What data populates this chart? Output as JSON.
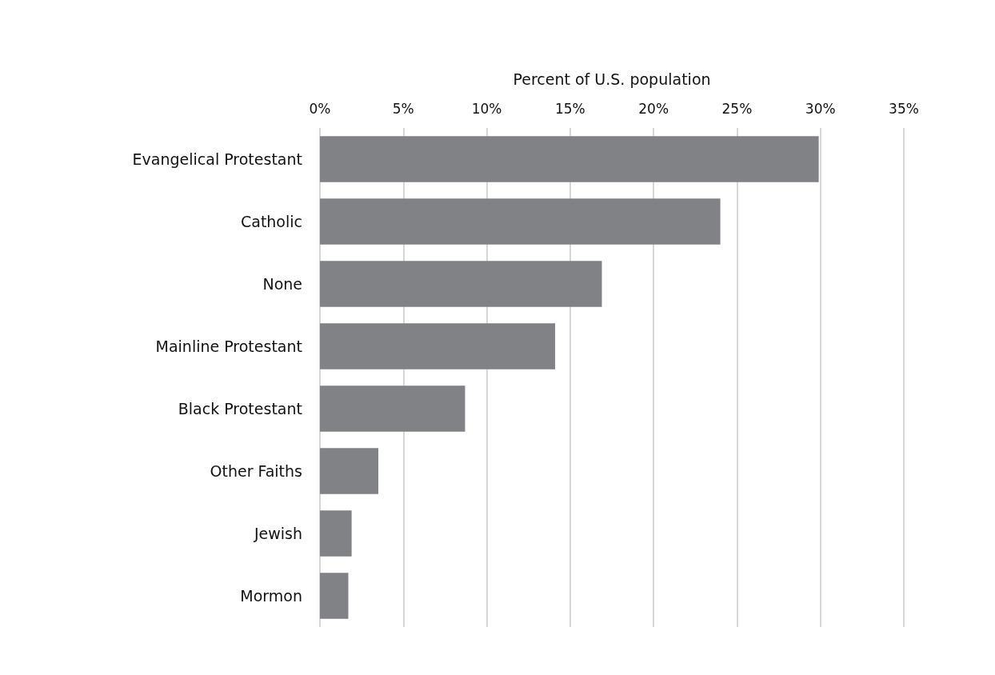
{
  "chart_data": {
    "type": "bar",
    "orientation": "horizontal",
    "xlabel": "Percent of U.S. population",
    "categories": [
      "Evangelical Protestant",
      "Catholic",
      "None",
      "Mainline Protestant",
      "Black Protestant",
      "Other Faiths",
      "Jewish",
      "Mormon"
    ],
    "values": [
      29.9,
      24,
      16.9,
      14.1,
      8.7,
      3.5,
      1.9,
      1.7
    ],
    "color": "#808285",
    "xlim": [
      0,
      35
    ],
    "xticks": [
      {
        "value": 0,
        "label": "0%"
      },
      {
        "value": 5,
        "label": "5%"
      },
      {
        "value": 10,
        "label": "10%"
      },
      {
        "value": 15,
        "label": "15%"
      },
      {
        "value": 20,
        "label": "20%"
      },
      {
        "value": 25,
        "label": "25%"
      },
      {
        "value": 30,
        "label": "30%"
      },
      {
        "value": 35,
        "label": "35%"
      }
    ],
    "grid": "x"
  }
}
